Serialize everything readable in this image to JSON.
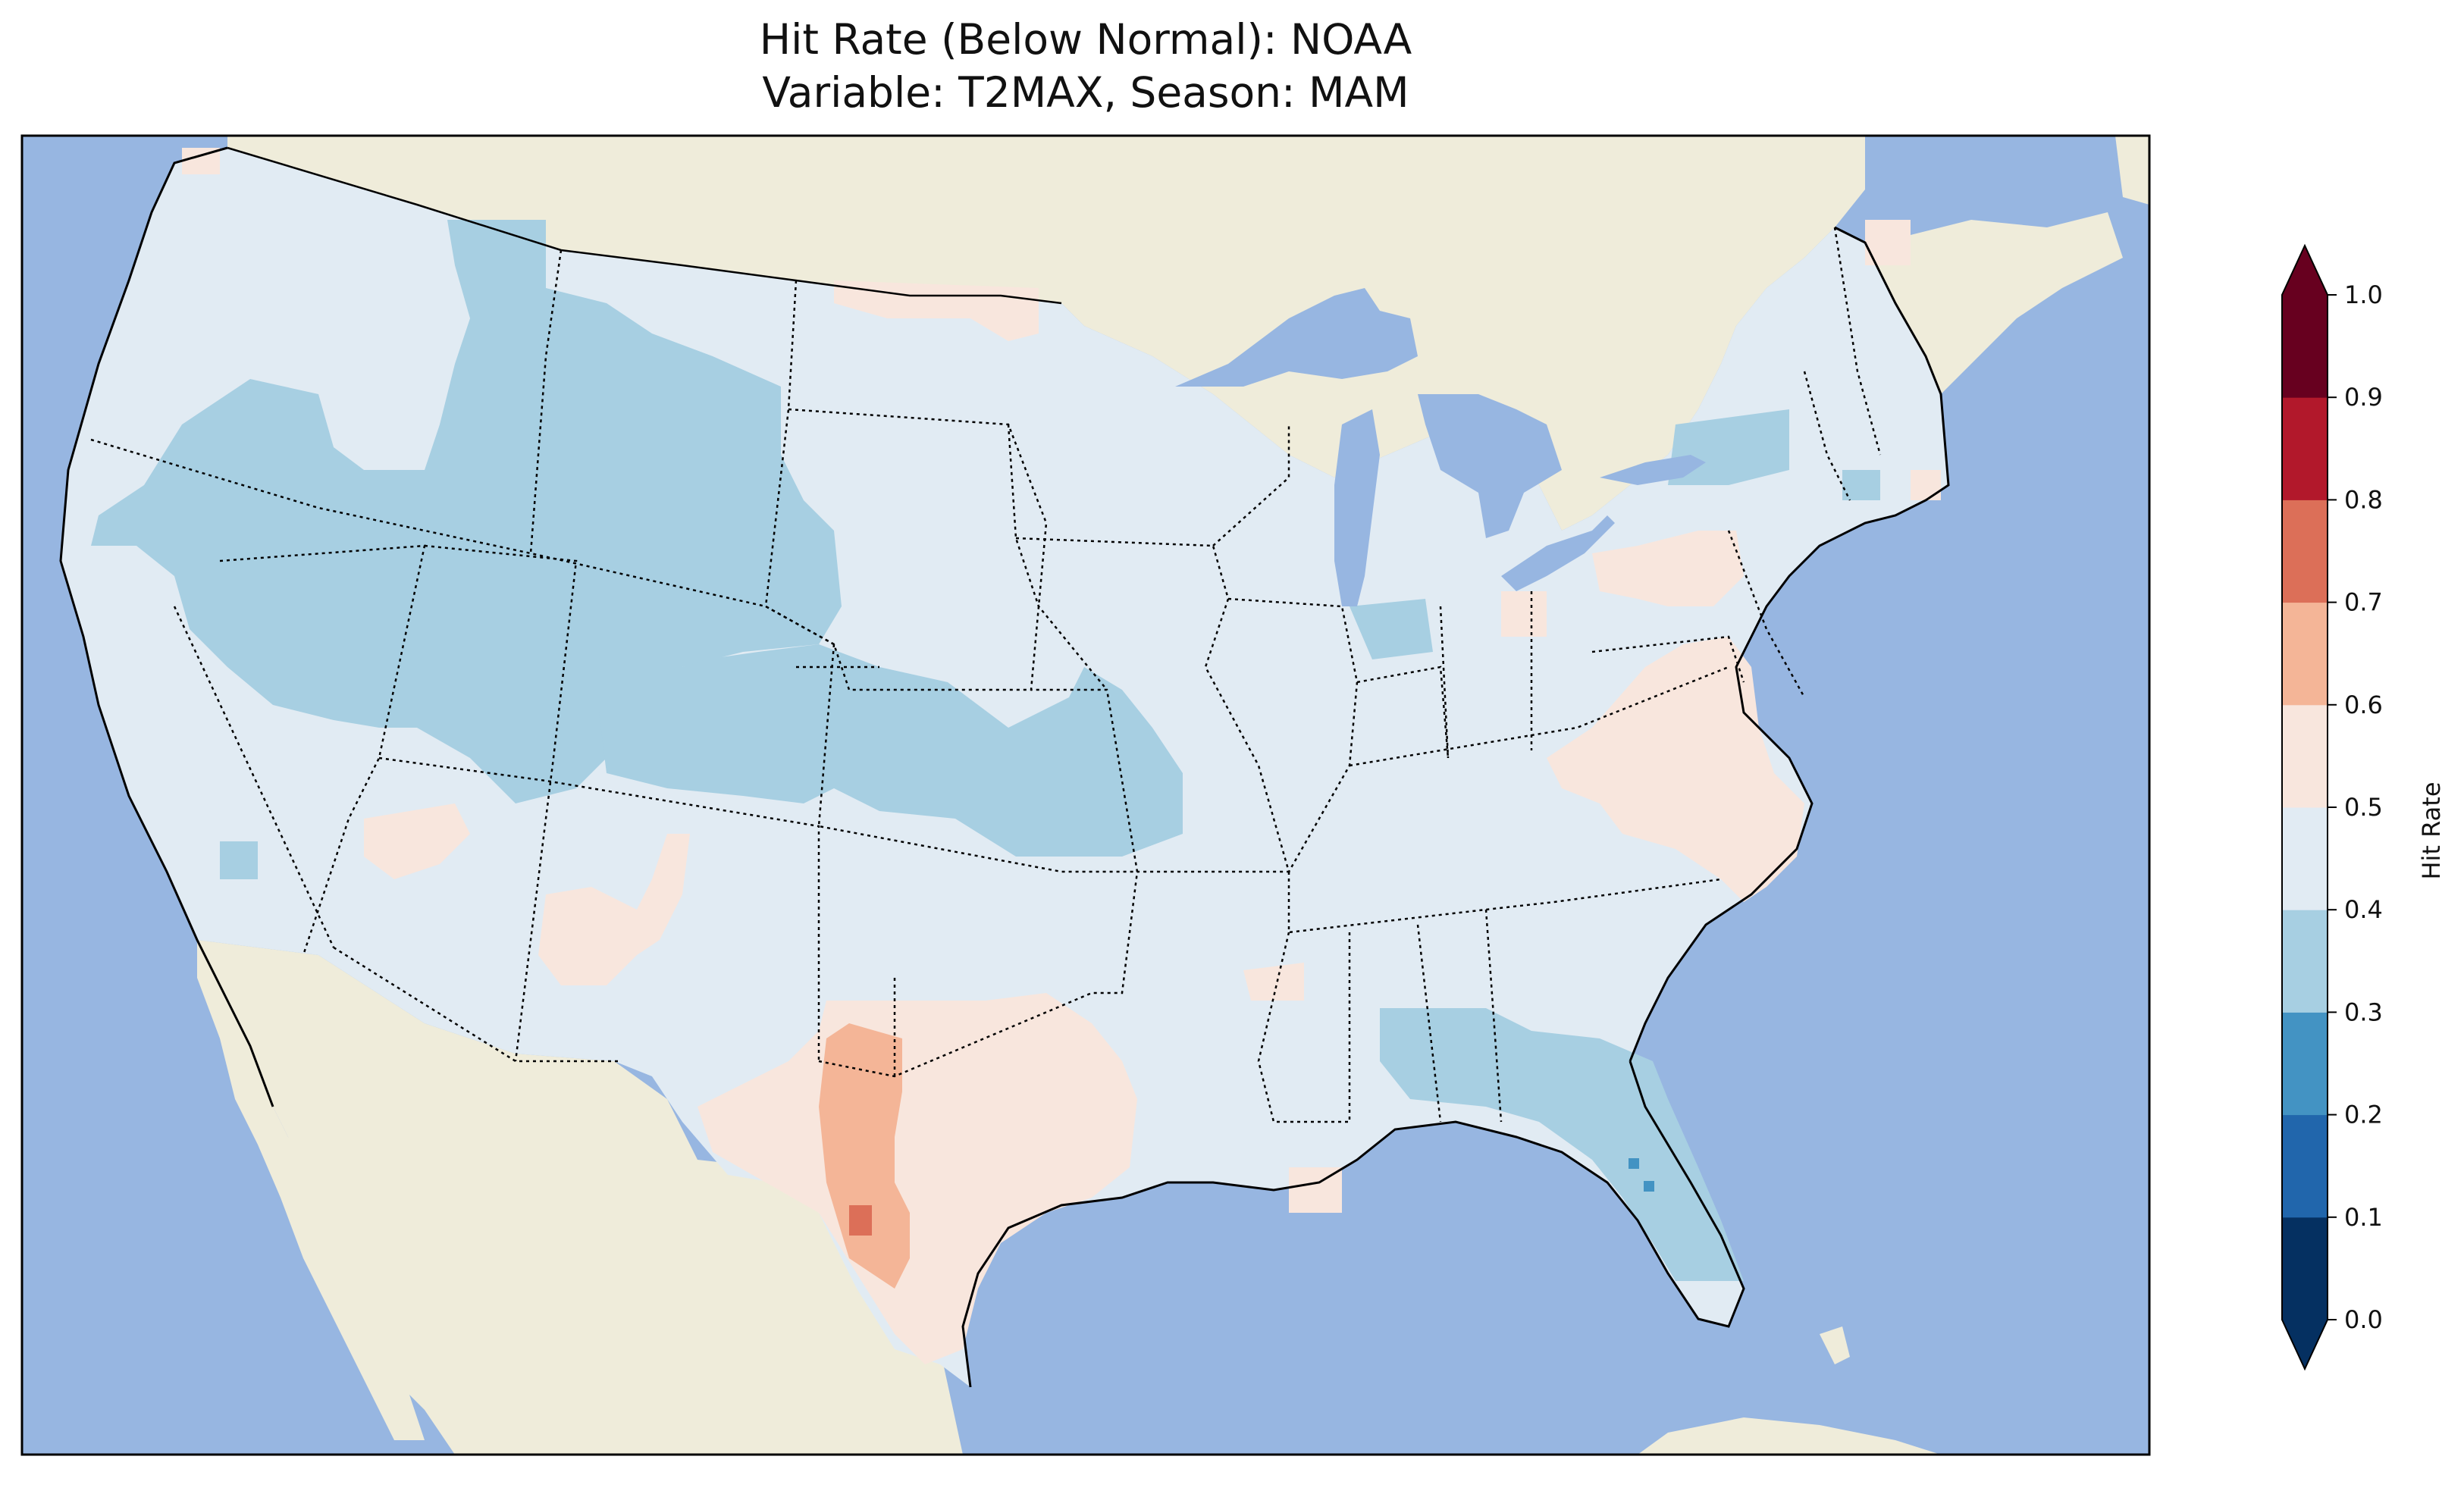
{
  "title": {
    "line1": "Hit Rate (Below Normal): NOAA",
    "line2": "Variable: T2MAX, Season: MAM"
  },
  "colors": {
    "ocean": "#97b6e1",
    "land": "#efecda",
    "border": "#000000"
  },
  "colorbar": {
    "label": "Hit Rate",
    "ticks": [
      "0.0",
      "0.1",
      "0.2",
      "0.3",
      "0.4",
      "0.5",
      "0.6",
      "0.7",
      "0.8",
      "0.9",
      "1.0"
    ],
    "bins": [
      {
        "range": [
          0.0,
          0.1
        ],
        "color": "#053061"
      },
      {
        "range": [
          0.1,
          0.2
        ],
        "color": "#2166ac"
      },
      {
        "range": [
          0.2,
          0.3
        ],
        "color": "#4393c3"
      },
      {
        "range": [
          0.3,
          0.4
        ],
        "color": "#a7cfe2"
      },
      {
        "range": [
          0.4,
          0.5
        ],
        "color": "#e1ebf3"
      },
      {
        "range": [
          0.5,
          0.6
        ],
        "color": "#f8e6dd"
      },
      {
        "range": [
          0.6,
          0.7
        ],
        "color": "#f4b597"
      },
      {
        "range": [
          0.7,
          0.8
        ],
        "color": "#dc6f58"
      },
      {
        "range": [
          0.8,
          0.9
        ],
        "color": "#b2182b"
      },
      {
        "range": [
          0.9,
          1.0
        ],
        "color": "#67001f"
      }
    ],
    "extend": "both"
  },
  "map_data": {
    "type": "heatmap",
    "projection": "PlateCarree",
    "region": "Contiguous United States",
    "dominant_value_range": [
      0.4,
      0.5
    ],
    "regions_by_bin": [
      {
        "area": "Northern Rockies / Wyoming / Great Basin",
        "bin": [
          0.3,
          0.4
        ]
      },
      {
        "area": "Colorado / Kansas",
        "bin": [
          0.3,
          0.4
        ]
      },
      {
        "area": "Southeast / Florida",
        "bin": [
          0.3,
          0.4
        ]
      },
      {
        "area": "Virginia / North Carolina",
        "bin": [
          0.5,
          0.6
        ]
      },
      {
        "area": "Texas",
        "bin": [
          0.5,
          0.6
        ]
      },
      {
        "area": "West Texas",
        "bin": [
          0.6,
          0.7
        ]
      },
      {
        "area": "Far West Texas",
        "bin": [
          0.7,
          0.8
        ]
      },
      {
        "area": "Central Florida",
        "bin": [
          0.2,
          0.3
        ]
      }
    ]
  }
}
